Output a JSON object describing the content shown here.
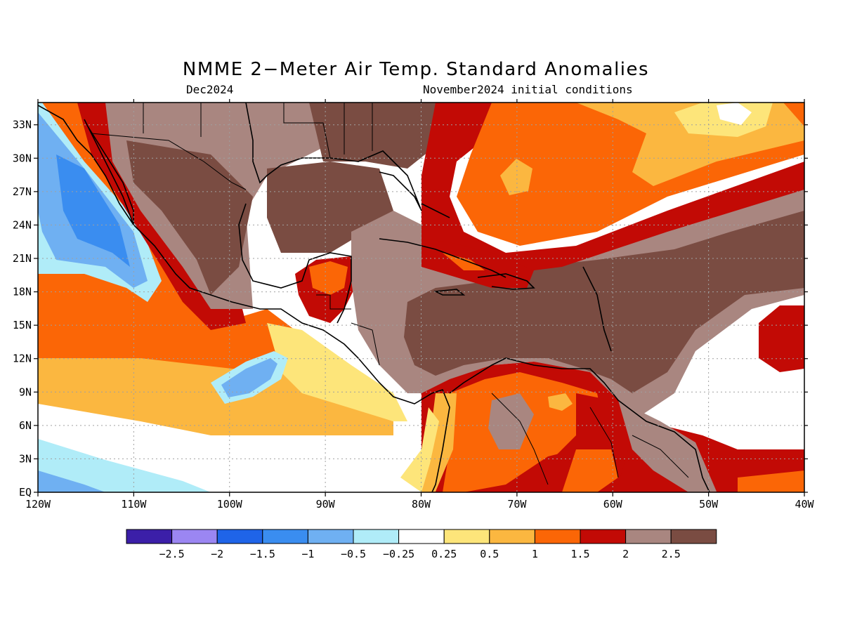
{
  "title": "NMME 2−Meter Air Temp. Standard Anomalies",
  "subtitle_left": "Dec2024",
  "subtitle_right": "November2024 initial conditions",
  "map": {
    "lon_range": [
      -120,
      -40
    ],
    "lat_range": [
      0,
      35
    ],
    "lon_ticks": [
      {
        "v": -120,
        "label": "120W"
      },
      {
        "v": -110,
        "label": "110W"
      },
      {
        "v": -100,
        "label": "100W"
      },
      {
        "v": -90,
        "label": "90W"
      },
      {
        "v": -80,
        "label": "80W"
      },
      {
        "v": -70,
        "label": "70W"
      },
      {
        "v": -60,
        "label": "60W"
      },
      {
        "v": -50,
        "label": "50W"
      },
      {
        "v": -40,
        "label": "40W"
      }
    ],
    "lat_ticks": [
      {
        "v": 0,
        "label": "EQ"
      },
      {
        "v": 3,
        "label": "3N"
      },
      {
        "v": 6,
        "label": "6N"
      },
      {
        "v": 9,
        "label": "9N"
      },
      {
        "v": 12,
        "label": "12N"
      },
      {
        "v": 15,
        "label": "15N"
      },
      {
        "v": 18,
        "label": "18N"
      },
      {
        "v": 21,
        "label": "21N"
      },
      {
        "v": 24,
        "label": "24N"
      },
      {
        "v": 27,
        "label": "27N"
      },
      {
        "v": 30,
        "label": "30N"
      },
      {
        "v": 33,
        "label": "33N"
      }
    ]
  },
  "colors": {
    "c_m3": "#3b1fa8",
    "c_m25": "#9b86f2",
    "c_m2": "#1f64e8",
    "c_m15": "#3a8df0",
    "c_m1": "#6fb0f2",
    "c_m05": "#b0ecf8",
    "c_0": "#ffffff",
    "c_p025": "#fde57a",
    "c_p05": "#fbb740",
    "c_p1": "#fb6606",
    "c_p15": "#c20a05",
    "c_p2": "#a98680",
    "c_p25": "#7a4c42"
  },
  "legend": {
    "boxes": [
      "#3b1fa8",
      "#9b86f2",
      "#1f64e8",
      "#3a8df0",
      "#6fb0f2",
      "#b0ecf8",
      "#ffffff",
      "#fde57a",
      "#fbb740",
      "#fb6606",
      "#c20a05",
      "#a98680",
      "#7a4c42"
    ],
    "labels": [
      "−2.5",
      "−2",
      "−1.5",
      "−1",
      "−0.5",
      "−0.25",
      "0.25",
      "0.5",
      "1",
      "1.5",
      "2",
      "2.5"
    ]
  }
}
